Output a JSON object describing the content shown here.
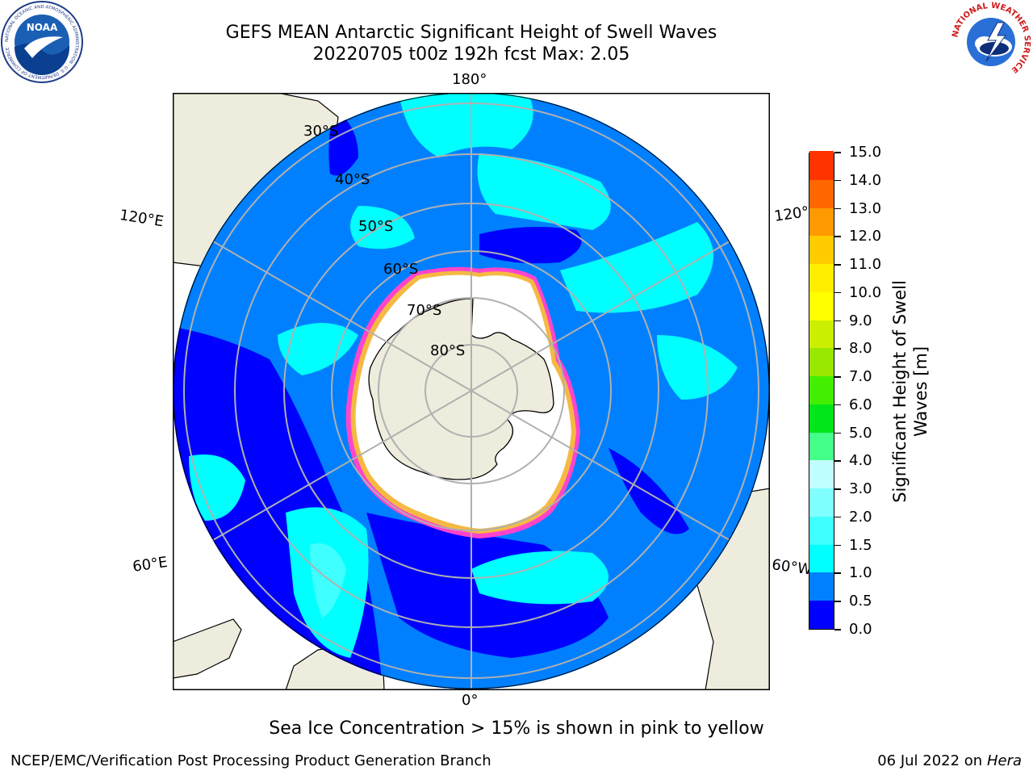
{
  "header": {
    "title_line1": "GEFS MEAN Antarctic Significant Height of Swell Waves",
    "title_line2": "20220705 t00z 192h fcst   Max: 2.05"
  },
  "map": {
    "longitude_labels": {
      "top": "180°",
      "bottom": "0°",
      "upper_left": "120°E",
      "upper_right": "120°W",
      "lower_left": "60°E",
      "lower_right": "60°W"
    },
    "latitude_labels": [
      "30°S",
      "40°S",
      "50°S",
      "60°S",
      "70°S",
      "80°S"
    ],
    "colors": {
      "land": "#eeecdc",
      "ice": "#ffffff",
      "ice_edge": "#ff44cc",
      "ice_pack": "#f5b942"
    }
  },
  "colorbar": {
    "title": "Significant Height of Swell Waves [m]",
    "title_line1": "Significant Height of Swell",
    "title_line2": "Waves [m]",
    "tick_labels": [
      "0.0",
      "0.5",
      "1.0",
      "1.5",
      "2.0",
      "3.0",
      "4.0",
      "5.0",
      "6.0",
      "7.0",
      "8.0",
      "9.0",
      "10.0",
      "11.0",
      "12.0",
      "13.0",
      "14.0",
      "15.0"
    ],
    "colors": [
      "#0000ff",
      "#0080ff",
      "#00ffff",
      "#40ffff",
      "#80ffff",
      "#c0ffff",
      "#44ff88",
      "#00e61a",
      "#44ee00",
      "#99e600",
      "#ccee00",
      "#ffff00",
      "#ffee00",
      "#ffcc00",
      "#ff9900",
      "#ff6600",
      "#ff3300",
      "#ff0000"
    ]
  },
  "footer": {
    "note": "Sea Ice Concentration > 15% is shown in pink to yellow",
    "credit": "NCEP/EMC/Verification Post Processing Product Generation Branch",
    "date_prefix": "06 Jul 2022 on ",
    "host": "Hera"
  },
  "logos": {
    "left": {
      "name": "noaa-logo",
      "text": "NOAA",
      "ring_text": "NATIONAL OCEANIC AND ATMOSPHERIC ADMINISTRATION · U.S. DEPARTMENT OF COMMERCE"
    },
    "right": {
      "name": "nws-logo",
      "ring_text": "NATIONAL WEATHER SERVICE"
    }
  }
}
